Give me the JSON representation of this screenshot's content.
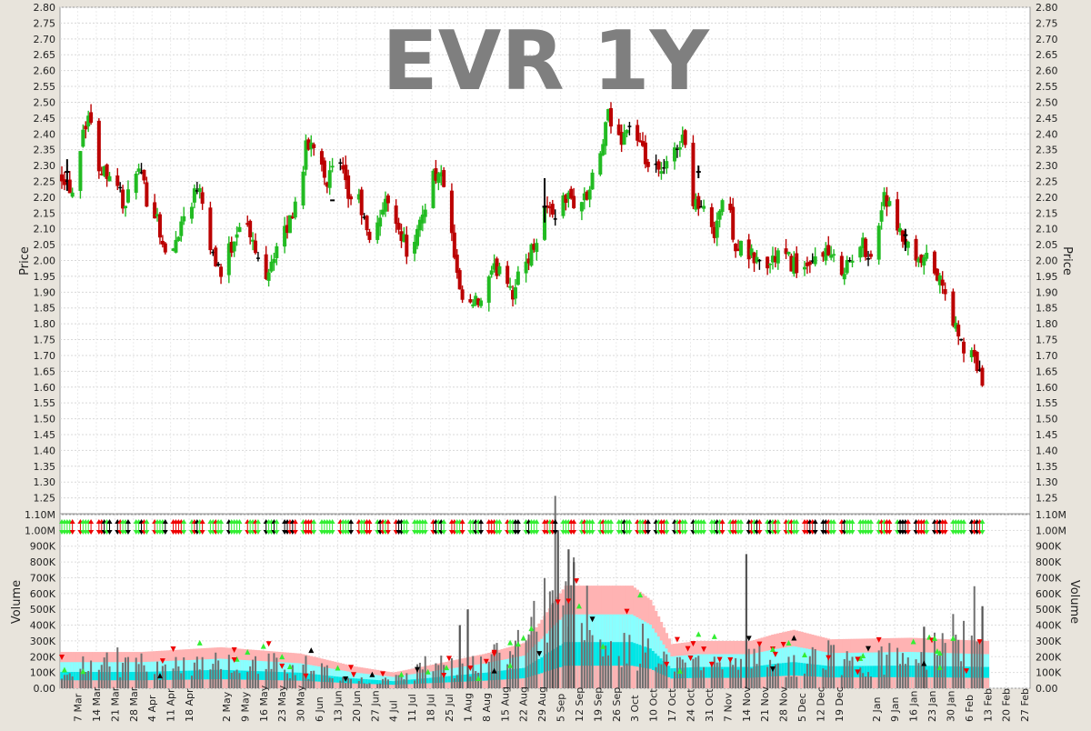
{
  "chart_data": [
    {
      "type": "ohlc",
      "title": "EVR 1Y",
      "ylabel": "Price",
      "ylim": [
        1.2,
        2.8
      ],
      "yticks": [
        "1.25",
        "1.30",
        "1.35",
        "1.40",
        "1.45",
        "1.50",
        "1.55",
        "1.60",
        "1.65",
        "1.70",
        "1.75",
        "1.80",
        "1.85",
        "1.90",
        "1.95",
        "2.00",
        "2.05",
        "2.10",
        "2.15",
        "2.20",
        "2.25",
        "2.30",
        "2.35",
        "2.40",
        "2.45",
        "2.50",
        "2.55",
        "2.60",
        "2.65",
        "2.70",
        "2.75",
        "2.80"
      ],
      "grid": true,
      "colors": {
        "up": "#22bb22",
        "down": "#bb0000",
        "flat": "#000000"
      },
      "close_anchors": [
        {
          "d": 0,
          "v": 2.28
        },
        {
          "d": 4,
          "v": 2.22
        },
        {
          "d": 8,
          "v": 2.42
        },
        {
          "d": 10,
          "v": 2.46
        },
        {
          "d": 14,
          "v": 2.3
        },
        {
          "d": 20,
          "v": 2.27
        },
        {
          "d": 24,
          "v": 2.16
        },
        {
          "d": 28,
          "v": 2.3
        },
        {
          "d": 32,
          "v": 2.2
        },
        {
          "d": 36,
          "v": 2.14
        },
        {
          "d": 40,
          "v": 1.97
        },
        {
          "d": 44,
          "v": 2.1
        },
        {
          "d": 48,
          "v": 2.18
        },
        {
          "d": 52,
          "v": 2.25
        },
        {
          "d": 56,
          "v": 2.05
        },
        {
          "d": 60,
          "v": 1.96
        },
        {
          "d": 64,
          "v": 2.05
        },
        {
          "d": 68,
          "v": 2.15
        },
        {
          "d": 72,
          "v": 2.05
        },
        {
          "d": 76,
          "v": 1.95
        },
        {
          "d": 80,
          "v": 2.02
        },
        {
          "d": 84,
          "v": 2.08
        },
        {
          "d": 88,
          "v": 2.18
        },
        {
          "d": 92,
          "v": 2.35
        },
        {
          "d": 96,
          "v": 2.38
        },
        {
          "d": 100,
          "v": 2.25
        },
        {
          "d": 104,
          "v": 2.32
        },
        {
          "d": 108,
          "v": 2.2
        },
        {
          "d": 112,
          "v": 2.19
        },
        {
          "d": 116,
          "v": 2.05
        },
        {
          "d": 120,
          "v": 2.15
        },
        {
          "d": 124,
          "v": 2.2
        },
        {
          "d": 128,
          "v": 2.08
        },
        {
          "d": 132,
          "v": 2.0
        },
        {
          "d": 136,
          "v": 2.15
        },
        {
          "d": 140,
          "v": 2.28
        },
        {
          "d": 144,
          "v": 2.25
        },
        {
          "d": 150,
          "v": 1.88
        },
        {
          "d": 154,
          "v": 1.85
        },
        {
          "d": 158,
          "v": 1.87
        },
        {
          "d": 162,
          "v": 1.95
        },
        {
          "d": 166,
          "v": 2.0
        },
        {
          "d": 170,
          "v": 1.9
        },
        {
          "d": 174,
          "v": 1.98
        },
        {
          "d": 178,
          "v": 2.05
        },
        {
          "d": 182,
          "v": 2.17
        },
        {
          "d": 186,
          "v": 2.15
        },
        {
          "d": 190,
          "v": 2.2
        },
        {
          "d": 194,
          "v": 2.18
        },
        {
          "d": 198,
          "v": 2.2
        },
        {
          "d": 202,
          "v": 2.3
        },
        {
          "d": 206,
          "v": 2.45
        },
        {
          "d": 210,
          "v": 2.38
        },
        {
          "d": 214,
          "v": 2.43
        },
        {
          "d": 218,
          "v": 2.35
        },
        {
          "d": 222,
          "v": 2.28
        },
        {
          "d": 226,
          "v": 2.27
        },
        {
          "d": 230,
          "v": 2.32
        },
        {
          "d": 234,
          "v": 2.4
        },
        {
          "d": 238,
          "v": 2.2
        },
        {
          "d": 242,
          "v": 2.15
        },
        {
          "d": 246,
          "v": 2.1
        },
        {
          "d": 250,
          "v": 2.22
        },
        {
          "d": 254,
          "v": 2.05
        },
        {
          "d": 258,
          "v": 2.02
        },
        {
          "d": 262,
          "v": 2.0
        },
        {
          "d": 266,
          "v": 1.98
        },
        {
          "d": 270,
          "v": 2.02
        },
        {
          "d": 274,
          "v": 2.0
        },
        {
          "d": 278,
          "v": 1.98
        },
        {
          "d": 282,
          "v": 1.96
        },
        {
          "d": 286,
          "v": 2.05
        },
        {
          "d": 290,
          "v": 2.0
        },
        {
          "d": 294,
          "v": 1.98
        },
        {
          "d": 298,
          "v": 2.0
        },
        {
          "d": 302,
          "v": 2.05
        },
        {
          "d": 306,
          "v": 2.0
        },
        {
          "d": 310,
          "v": 2.22
        },
        {
          "d": 314,
          "v": 2.1
        },
        {
          "d": 318,
          "v": 2.05
        },
        {
          "d": 322,
          "v": 1.98
        },
        {
          "d": 326,
          "v": 2.0
        },
        {
          "d": 330,
          "v": 1.95
        },
        {
          "d": 334,
          "v": 1.87
        },
        {
          "d": 338,
          "v": 1.75
        },
        {
          "d": 342,
          "v": 1.7
        },
        {
          "d": 346,
          "v": 1.66
        },
        {
          "d": 348,
          "v": 1.5
        }
      ],
      "extras": [
        {
          "d": 2,
          "c": 2.28,
          "h": 2.32,
          "l": 2.22
        },
        {
          "d": 102,
          "c": 2.19,
          "h": 2.19,
          "l": 2.19
        },
        {
          "d": 182,
          "c": 2.17,
          "h": 2.26,
          "l": 2.12
        },
        {
          "d": 240,
          "c": 2.28,
          "h": 2.3,
          "l": 2.26
        },
        {
          "d": 318,
          "c": 2.08,
          "h": 2.1,
          "l": 2.03
        }
      ]
    },
    {
      "type": "bar",
      "ylabel": "Volume",
      "ylim": [
        0,
        1100000
      ],
      "yticks": [
        "0.00",
        "100K",
        "200K",
        "300K",
        "400K",
        "500K",
        "600K",
        "700K",
        "800K",
        "900K",
        "1.00M",
        "1.10M"
      ],
      "grid": true,
      "volume_anchors": [
        {
          "d": 0,
          "v": 150000
        },
        {
          "d": 20,
          "v": 180000
        },
        {
          "d": 40,
          "v": 120000
        },
        {
          "d": 60,
          "v": 200000
        },
        {
          "d": 80,
          "v": 160000
        },
        {
          "d": 100,
          "v": 130000
        },
        {
          "d": 110,
          "v": 60000
        },
        {
          "d": 120,
          "v": 40000
        },
        {
          "d": 130,
          "v": 70000
        },
        {
          "d": 140,
          "v": 180000
        },
        {
          "d": 150,
          "v": 120000
        },
        {
          "d": 160,
          "v": 200000
        },
        {
          "d": 170,
          "v": 260000
        },
        {
          "d": 180,
          "v": 400000
        },
        {
          "d": 186,
          "v": 850000
        },
        {
          "d": 190,
          "v": 500000
        },
        {
          "d": 196,
          "v": 650000
        },
        {
          "d": 200,
          "v": 300000
        },
        {
          "d": 210,
          "v": 240000
        },
        {
          "d": 220,
          "v": 280000
        },
        {
          "d": 230,
          "v": 120000
        },
        {
          "d": 240,
          "v": 180000
        },
        {
          "d": 250,
          "v": 220000
        },
        {
          "d": 260,
          "v": 200000
        },
        {
          "d": 270,
          "v": 150000
        },
        {
          "d": 280,
          "v": 180000
        },
        {
          "d": 290,
          "v": 220000
        },
        {
          "d": 300,
          "v": 150000
        },
        {
          "d": 310,
          "v": 200000
        },
        {
          "d": 320,
          "v": 180000
        },
        {
          "d": 330,
          "v": 250000
        },
        {
          "d": 348,
          "v": 500000
        }
      ],
      "spikes": [
        {
          "d": 187,
          "v": 1000000
        },
        {
          "d": 191,
          "v": 880000
        },
        {
          "d": 193,
          "v": 800000
        },
        {
          "d": 258,
          "v": 850000
        },
        {
          "d": 153,
          "v": 500000
        },
        {
          "d": 150,
          "v": 400000
        },
        {
          "d": 185,
          "v": 540000
        },
        {
          "d": 347,
          "v": 520000
        },
        {
          "d": 325,
          "v": 390000
        }
      ],
      "band_anchors": [
        {
          "d": 0,
          "v": 230000
        },
        {
          "d": 30,
          "v": 230000
        },
        {
          "d": 60,
          "v": 260000
        },
        {
          "d": 90,
          "v": 220000
        },
        {
          "d": 110,
          "v": 140000
        },
        {
          "d": 125,
          "v": 100000
        },
        {
          "d": 140,
          "v": 150000
        },
        {
          "d": 160,
          "v": 220000
        },
        {
          "d": 175,
          "v": 290000
        },
        {
          "d": 185,
          "v": 530000
        },
        {
          "d": 190,
          "v": 650000
        },
        {
          "d": 215,
          "v": 650000
        },
        {
          "d": 222,
          "v": 560000
        },
        {
          "d": 230,
          "v": 280000
        },
        {
          "d": 240,
          "v": 300000
        },
        {
          "d": 260,
          "v": 300000
        },
        {
          "d": 268,
          "v": 340000
        },
        {
          "d": 276,
          "v": 370000
        },
        {
          "d": 290,
          "v": 310000
        },
        {
          "d": 320,
          "v": 320000
        },
        {
          "d": 348,
          "v": 300000
        }
      ],
      "arrow_colors": {
        "up": "#33ee33",
        "down": "#ee0000",
        "flat": "#000000"
      }
    }
  ],
  "xaxis": {
    "labels": [
      {
        "d": 6,
        "t": "7 Mar"
      },
      {
        "d": 13,
        "t": "14 Mar"
      },
      {
        "d": 20,
        "t": "21 Mar"
      },
      {
        "d": 27,
        "t": "28 Mar"
      },
      {
        "d": 34,
        "t": "4 Apr"
      },
      {
        "d": 41,
        "t": "11 Apr"
      },
      {
        "d": 48,
        "t": "18 Apr"
      },
      {
        "d": 62,
        "t": "2 May"
      },
      {
        "d": 69,
        "t": "9 May"
      },
      {
        "d": 76,
        "t": "16 May"
      },
      {
        "d": 83,
        "t": "23 May"
      },
      {
        "d": 90,
        "t": "30 May"
      },
      {
        "d": 97,
        "t": "6 Jun"
      },
      {
        "d": 104,
        "t": "13 Jun"
      },
      {
        "d": 111,
        "t": "20 Jun"
      },
      {
        "d": 118,
        "t": "27 Jun"
      },
      {
        "d": 125,
        "t": "4 Jul"
      },
      {
        "d": 132,
        "t": "11 Jul"
      },
      {
        "d": 139,
        "t": "18 Jul"
      },
      {
        "d": 146,
        "t": "25 Jul"
      },
      {
        "d": 153,
        "t": "1 Aug"
      },
      {
        "d": 160,
        "t": "8 Aug"
      },
      {
        "d": 167,
        "t": "15 Aug"
      },
      {
        "d": 174,
        "t": "22 Aug"
      },
      {
        "d": 181,
        "t": "29 Aug"
      },
      {
        "d": 188,
        "t": "5 Sep"
      },
      {
        "d": 195,
        "t": "12 Sep"
      },
      {
        "d": 202,
        "t": "19 Sep"
      },
      {
        "d": 209,
        "t": "26 Sep"
      },
      {
        "d": 216,
        "t": "3 Oct"
      },
      {
        "d": 223,
        "t": "10 Oct"
      },
      {
        "d": 230,
        "t": "17 Oct"
      },
      {
        "d": 237,
        "t": "24 Oct"
      },
      {
        "d": 244,
        "t": "31 Oct"
      },
      {
        "d": 251,
        "t": "7 Nov"
      },
      {
        "d": 258,
        "t": "14 Nov"
      },
      {
        "d": 265,
        "t": "21 Nov"
      },
      {
        "d": 272,
        "t": "28 Nov"
      },
      {
        "d": 279,
        "t": "5 Dec"
      },
      {
        "d": 286,
        "t": "12 Dec"
      },
      {
        "d": 293,
        "t": "19 Dec"
      },
      {
        "d": 307,
        "t": "2 Jan"
      },
      {
        "d": 314,
        "t": "9 Jan"
      },
      {
        "d": 321,
        "t": "16 Jan"
      },
      {
        "d": 328,
        "t": "23 Jan"
      },
      {
        "d": 335,
        "t": "30 Jan"
      },
      {
        "d": 342,
        "t": "6 Feb"
      },
      {
        "d": 349,
        "t": "13 Feb"
      },
      {
        "d": 356,
        "t": "20 Feb"
      },
      {
        "d": 363,
        "t": "27 Feb"
      }
    ]
  }
}
